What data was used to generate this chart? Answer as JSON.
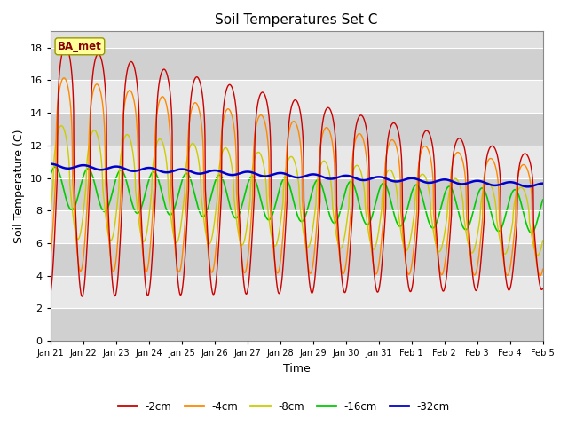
{
  "title": "Soil Temperatures Set C",
  "xlabel": "Time",
  "ylabel": "Soil Temperature (C)",
  "ylim": [
    0,
    19
  ],
  "yticks": [
    0,
    2,
    4,
    6,
    8,
    10,
    12,
    14,
    16,
    18
  ],
  "xtick_labels": [
    "Jan 21",
    "Jan 22",
    "Jan 23",
    "Jan 24",
    "Jan 25",
    "Jan 26",
    "Jan 27",
    "Jan 28",
    "Jan 29",
    "Jan 30",
    "Jan 31",
    "Feb 1",
    "Feb 2",
    "Feb 3",
    "Feb 4",
    "Feb 5"
  ],
  "legend_labels": [
    "-2cm",
    "-4cm",
    "-8cm",
    "-16cm",
    "-32cm"
  ],
  "line_colors": [
    "#cc0000",
    "#ff8800",
    "#cccc00",
    "#00cc00",
    "#0000cc"
  ],
  "plot_bg_color": "#e0e0e0",
  "grid_band_color": "#cccccc",
  "annotation_text": "BA_met"
}
